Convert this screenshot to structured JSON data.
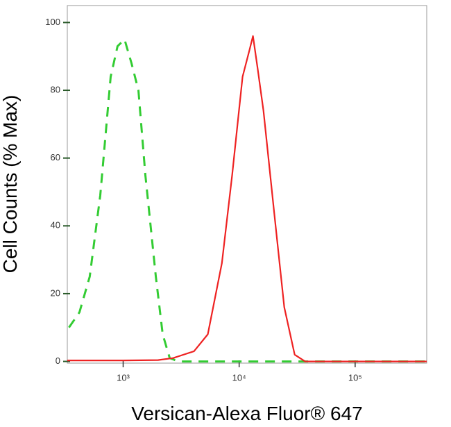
{
  "chart_data": {
    "type": "line",
    "x_label": "Versican-Alexa Fluor® 647",
    "y_label": "Cell Counts (% Max)",
    "xscale": "log",
    "xlim": [
      330,
      414000
    ],
    "ylim": [
      -0.5,
      105
    ],
    "xticks": [
      {
        "value": 1000,
        "label": "10³"
      },
      {
        "value": 10000,
        "label": "10⁴"
      },
      {
        "value": 100000,
        "label": "10⁵"
      }
    ],
    "yticks": [
      0,
      20,
      40,
      60,
      80,
      100
    ],
    "series": [
      {
        "color": "#33cc33",
        "dash": true,
        "x": [
          341,
          420,
          515,
          635,
          780,
          895,
          1028,
          1180,
          1354,
          1555,
          1912,
          2194,
          2519,
          3000,
          10000,
          100000,
          414000
        ],
        "values": [
          10,
          14.5,
          25,
          49,
          84,
          93,
          95,
          88,
          80,
          55,
          25,
          8,
          1,
          0,
          0,
          0,
          0
        ]
      },
      {
        "color": "#ee2222",
        "dash": false,
        "x": [
          330,
          1000,
          2000,
          2700,
          4080,
          5370,
          7100,
          8710,
          10700,
          12300,
          13150,
          14500,
          16200,
          19900,
          24500,
          30100,
          37000,
          100000,
          414000
        ],
        "values": [
          0.3,
          0.3,
          0.4,
          1,
          3,
          8,
          29,
          55,
          84,
          92,
          96,
          86,
          74,
          45,
          16,
          2,
          0,
          0,
          0
        ]
      }
    ]
  }
}
